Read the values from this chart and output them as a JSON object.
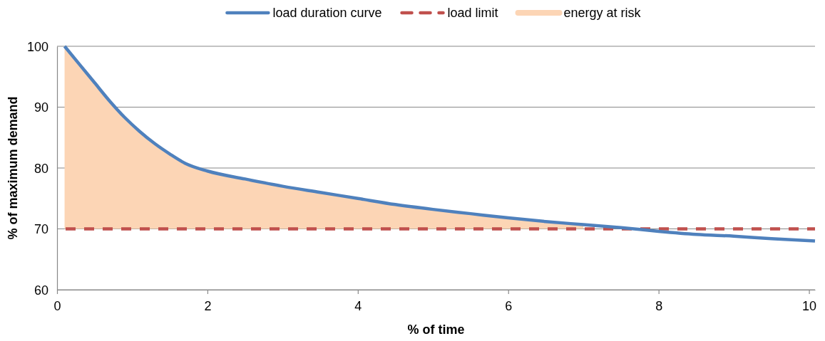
{
  "chart_data": {
    "type": "line",
    "xlabel": "% of time",
    "ylabel": "% of maximum demand",
    "xlim": [
      0,
      10.08
    ],
    "xticks": [
      0,
      2,
      4,
      6,
      8,
      10
    ],
    "ylim": [
      60,
      100
    ],
    "yticks": [
      60,
      70,
      80,
      90,
      100
    ],
    "grid": "y",
    "legend": "top",
    "ref_lines": [
      {
        "axis": "y",
        "value": 70,
        "label": "load limit",
        "color": "#c0504d",
        "line_style": "dashed"
      }
    ],
    "series": [
      {
        "name": "load duration curve",
        "type": "line",
        "color": "#4f81bd",
        "line_style": "solid",
        "x": [
          0.1,
          0.3,
          0.5,
          0.7,
          0.9,
          1.1,
          1.3,
          1.5,
          1.7,
          2,
          2.5,
          3,
          3.5,
          4,
          4.5,
          5,
          5.5,
          6,
          6.5,
          7,
          7.5,
          8,
          8.5,
          9,
          9.5,
          10.08
        ],
        "values": [
          100,
          97,
          94,
          91,
          88.3,
          86,
          84,
          82.3,
          80.8,
          79.5,
          78.2,
          77,
          76,
          75,
          74,
          73.2,
          72.5,
          71.8,
          71.2,
          70.7,
          70.2,
          69.6,
          69.1,
          68.8,
          68.4,
          68
        ]
      },
      {
        "name": "energy at risk",
        "type": "area",
        "color": "#fcd5b5",
        "x": [
          0.1,
          0.3,
          0.5,
          0.7,
          0.9,
          1.1,
          1.3,
          1.5,
          1.7,
          2,
          2.5,
          3,
          3.5,
          4,
          4.5,
          5,
          5.5,
          6,
          6.5,
          7
        ],
        "values": [
          100,
          97,
          94,
          91,
          88.3,
          86,
          84,
          82.3,
          80.8,
          79.5,
          78.2,
          77,
          76,
          75,
          74,
          73.2,
          72.5,
          71.8,
          71.2,
          70.7
        ]
      }
    ]
  }
}
